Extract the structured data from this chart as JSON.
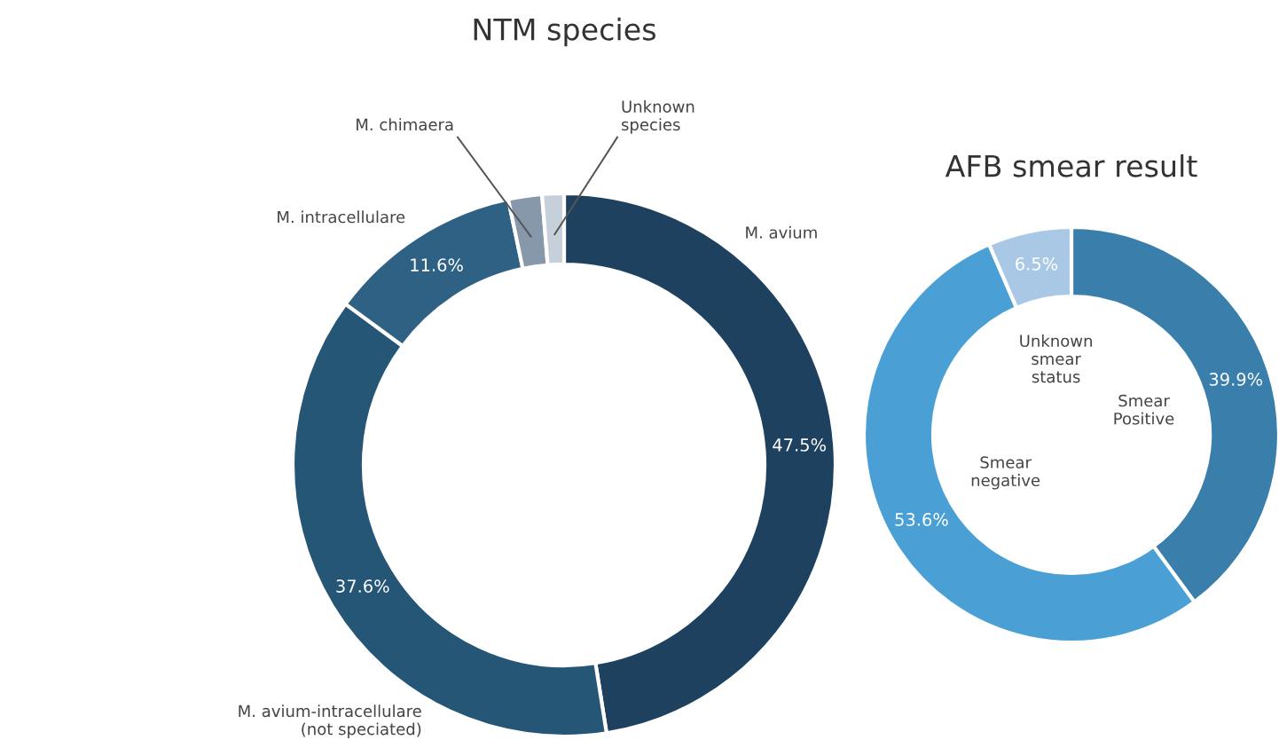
{
  "chart_data": [
    {
      "type": "donut",
      "title": "NTM species",
      "categories": [
        "M. avium",
        "M. avium-intracellulare\n(not speciated)",
        "M. intracellulare",
        "M. chimaera",
        "Unknown\nspecies"
      ],
      "values": [
        47.5,
        37.6,
        11.6,
        2.0,
        1.3
      ],
      "value_labels": [
        "47.5%",
        "37.6%",
        "11.6%",
        null,
        null
      ],
      "colors": [
        "#1f4160",
        "#265676",
        "#2f6184",
        "#8698aa",
        "#c6d0da"
      ]
    },
    {
      "type": "donut",
      "title": "AFB smear result",
      "categories": [
        "Smear\nPositive",
        "Smear\nnegative",
        "Unknown\nsmear\nstatus"
      ],
      "values": [
        39.9,
        53.6,
        6.5
      ],
      "value_labels": [
        "39.9%",
        "53.6%",
        "6.5%"
      ],
      "colors": [
        "#3a7fac",
        "#4a9fd5",
        "#a9c8e6"
      ]
    }
  ]
}
